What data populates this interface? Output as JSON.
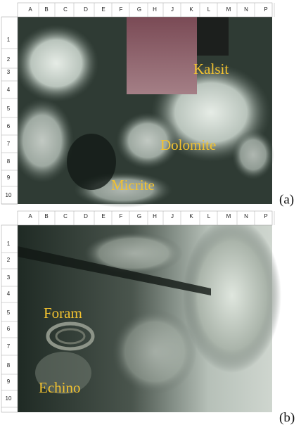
{
  "panels": [
    {
      "column_labels": [
        "A",
        "B",
        "C",
        "D",
        "E",
        "F",
        "G",
        "H",
        "J",
        "K",
        "L",
        "M",
        "N",
        "P"
      ],
      "row_labels": [
        "1",
        "2",
        "3",
        "4",
        "5",
        "6",
        "7",
        "8",
        "9",
        "10"
      ],
      "annotations": [
        "Kalsit",
        "Dolomite",
        "Micrite"
      ],
      "label": "(a)"
    },
    {
      "column_labels": [
        "A",
        "B",
        "C",
        "D",
        "E",
        "F",
        "G",
        "H",
        "J",
        "K",
        "L",
        "M",
        "N",
        "P"
      ],
      "row_labels": [
        "1",
        "2",
        "3",
        "4",
        "5",
        "6",
        "7",
        "8",
        "9",
        "10"
      ],
      "annotations": [
        "Foram",
        "Echino"
      ],
      "label": "(b)"
    }
  ]
}
